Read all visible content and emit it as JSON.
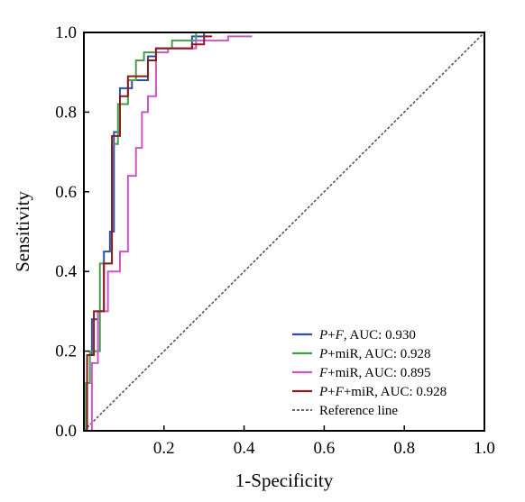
{
  "chart_data": {
    "type": "line",
    "xlabel": "1-Specificity",
    "ylabel": "Sensitivity",
    "xlim": [
      0,
      1
    ],
    "ylim": [
      0,
      1
    ],
    "xticks": [
      "0.2",
      "0.4",
      "0.6",
      "0.8",
      "1.0"
    ],
    "yticks": [
      "0.0",
      "0.2",
      "0.4",
      "0.6",
      "0.8",
      "1.0"
    ],
    "grid": false,
    "legend_position": "bottom-right",
    "series": [
      {
        "legend_parts": [
          {
            "text": "P",
            "italic": true
          },
          {
            "text": "+",
            "italic": false
          },
          {
            "text": "F",
            "italic": true
          },
          {
            "text": ", AUC: 0.930",
            "italic": false
          }
        ],
        "auc": 0.93,
        "color": "#2b4ea8",
        "x": [
          0,
          0.008,
          0.008,
          0.02,
          0.02,
          0.035,
          0.035,
          0.05,
          0.05,
          0.065,
          0.065,
          0.075,
          0.075,
          0.09,
          0.09,
          0.12,
          0.12,
          0.16,
          0.16,
          0.18,
          0.18,
          0.27,
          0.27,
          0.3,
          0.3,
          0.33
        ],
        "y": [
          0,
          0,
          0.19,
          0.19,
          0.28,
          0.28,
          0.3,
          0.3,
          0.45,
          0.45,
          0.5,
          0.5,
          0.75,
          0.75,
          0.86,
          0.86,
          0.88,
          0.88,
          0.94,
          0.94,
          0.96,
          0.96,
          0.99,
          0.99,
          1.0,
          1.0
        ]
      },
      {
        "legend_parts": [
          {
            "text": "P",
            "italic": true
          },
          {
            "text": "+miR, AUC: 0.928",
            "italic": false
          }
        ],
        "auc": 0.928,
        "color": "#4a9e4a",
        "x": [
          0,
          0.005,
          0.005,
          0.015,
          0.015,
          0.04,
          0.04,
          0.07,
          0.07,
          0.085,
          0.085,
          0.11,
          0.11,
          0.13,
          0.13,
          0.15,
          0.15,
          0.18,
          0.18,
          0.22,
          0.22,
          0.28,
          0.28,
          0.32
        ],
        "y": [
          0,
          0,
          0.12,
          0.12,
          0.2,
          0.2,
          0.42,
          0.42,
          0.72,
          0.72,
          0.82,
          0.82,
          0.88,
          0.88,
          0.93,
          0.93,
          0.95,
          0.95,
          0.96,
          0.96,
          0.98,
          0.98,
          1.0,
          1.0
        ]
      },
      {
        "legend_parts": [
          {
            "text": "F",
            "italic": true
          },
          {
            "text": "+miR, AUC: 0.895",
            "italic": false
          }
        ],
        "auc": 0.895,
        "color": "#cc55cc",
        "x": [
          0,
          0.02,
          0.02,
          0.035,
          0.035,
          0.06,
          0.06,
          0.09,
          0.09,
          0.11,
          0.11,
          0.13,
          0.13,
          0.145,
          0.145,
          0.16,
          0.16,
          0.18,
          0.18,
          0.21,
          0.21,
          0.28,
          0.28,
          0.36,
          0.36,
          0.42
        ],
        "y": [
          0,
          0,
          0.17,
          0.17,
          0.3,
          0.3,
          0.4,
          0.4,
          0.45,
          0.45,
          0.64,
          0.64,
          0.71,
          0.71,
          0.8,
          0.8,
          0.84,
          0.84,
          0.95,
          0.95,
          0.96,
          0.96,
          0.98,
          0.98,
          0.99,
          0.99
        ]
      },
      {
        "legend_parts": [
          {
            "text": "P",
            "italic": true
          },
          {
            "text": "+",
            "italic": false
          },
          {
            "text": "F",
            "italic": true
          },
          {
            "text": "+miR, AUC: 0.928",
            "italic": false
          }
        ],
        "auc": 0.928,
        "color": "#8b1a1a",
        "x": [
          0,
          0.008,
          0.008,
          0.025,
          0.025,
          0.05,
          0.05,
          0.07,
          0.07,
          0.09,
          0.09,
          0.11,
          0.11,
          0.16,
          0.16,
          0.18,
          0.18,
          0.27,
          0.27,
          0.3,
          0.3,
          0.32
        ],
        "y": [
          0,
          0,
          0.19,
          0.19,
          0.3,
          0.3,
          0.42,
          0.42,
          0.74,
          0.74,
          0.84,
          0.84,
          0.89,
          0.89,
          0.93,
          0.93,
          0.96,
          0.96,
          0.97,
          0.97,
          0.99,
          0.99
        ]
      },
      {
        "legend_parts": [
          {
            "text": "Reference line",
            "italic": false
          }
        ],
        "color": "#555555",
        "dashed": true,
        "x": [
          0,
          1
        ],
        "y": [
          0,
          1
        ]
      }
    ]
  }
}
